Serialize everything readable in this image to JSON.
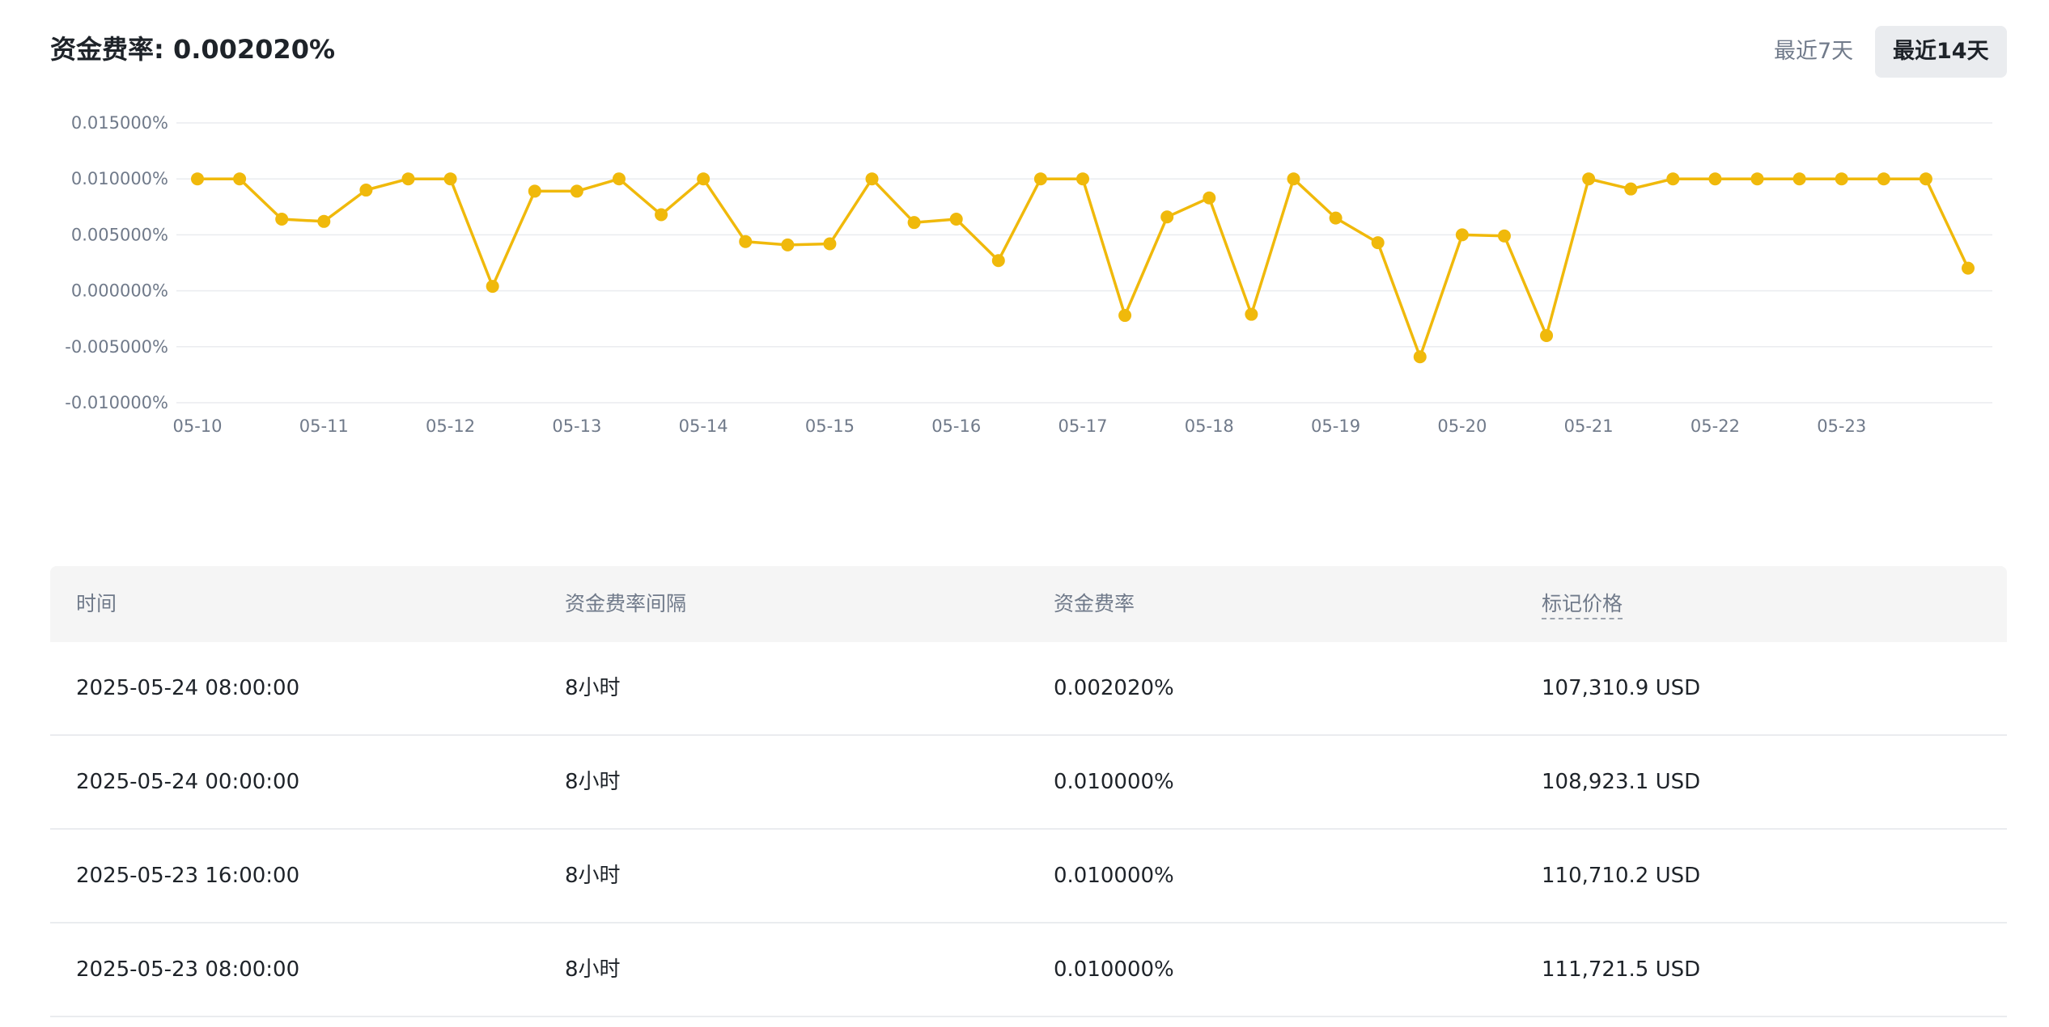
{
  "header": {
    "title": "资金费率: 0.002020%",
    "range_buttons": [
      {
        "label": "最近7天",
        "selected": false
      },
      {
        "label": "最近14天",
        "selected": true
      }
    ]
  },
  "chart_data": {
    "type": "line",
    "title": "",
    "xlabel": "",
    "ylabel": "",
    "ylim": [
      -0.01,
      0.015
    ],
    "y_tick_labels": [
      "0.015000%",
      "0.010000%",
      "0.005000%",
      "0.000000%",
      "-0.005000%",
      "-0.010000%"
    ],
    "y_ticks": [
      0.015,
      0.01,
      0.005,
      0.0,
      -0.005,
      -0.01
    ],
    "x_tick_labels": [
      "05-10",
      "05-11",
      "05-12",
      "05-13",
      "05-14",
      "05-15",
      "05-16",
      "05-17",
      "05-18",
      "05-19",
      "05-20",
      "05-21",
      "05-22",
      "05-23"
    ],
    "series": [
      {
        "values": [
          0.01,
          0.01,
          0.0064,
          0.0062,
          0.009,
          0.01,
          0.01,
          0.0004,
          0.0089,
          0.0089,
          0.01,
          0.0068,
          0.01,
          0.0044,
          0.0041,
          0.0042,
          0.01,
          0.0061,
          0.0064,
          0.0027,
          0.01,
          0.01,
          -0.0022,
          0.0066,
          0.0083,
          -0.0021,
          0.01,
          0.0065,
          0.0043,
          -0.0059,
          0.005,
          0.0049,
          -0.004,
          0.01,
          0.0091,
          0.01,
          0.01,
          0.01,
          0.01,
          0.01,
          0.01,
          0.01,
          0.00202
        ],
        "color": "#f0b90b"
      }
    ],
    "grid": true,
    "legend": "none"
  },
  "table": {
    "headers": [
      "时间",
      "资金费率间隔",
      "资金费率",
      "标记价格"
    ],
    "rows": [
      [
        "2025-05-24 08:00:00",
        "8小时",
        "0.002020%",
        "107,310.9 USD"
      ],
      [
        "2025-05-24 00:00:00",
        "8小时",
        "0.010000%",
        "108,923.1 USD"
      ],
      [
        "2025-05-23 16:00:00",
        "8小时",
        "0.010000%",
        "110,710.2 USD"
      ],
      [
        "2025-05-23 08:00:00",
        "8小时",
        "0.010000%",
        "111,721.5 USD"
      ]
    ]
  }
}
